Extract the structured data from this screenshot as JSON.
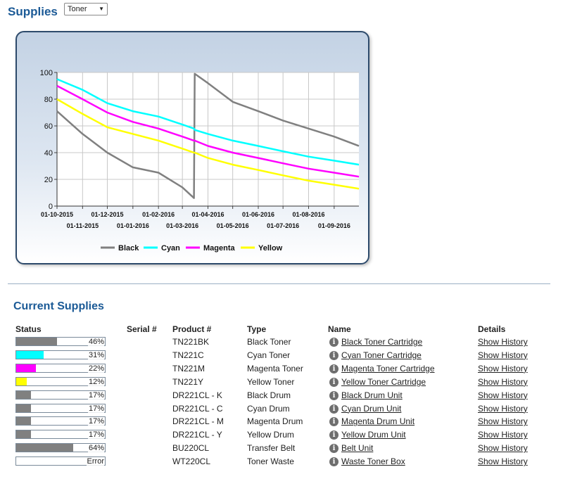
{
  "header": {
    "title": "Supplies",
    "select_value": "Toner"
  },
  "legend": [
    {
      "label": "Black",
      "color": "#808080"
    },
    {
      "label": "Cyan",
      "color": "#00ffff"
    },
    {
      "label": "Magenta",
      "color": "#ff00ff"
    },
    {
      "label": "Yellow",
      "color": "#ffff00"
    }
  ],
  "chart_data": {
    "type": "line",
    "title": "",
    "xlabel": "",
    "ylabel": "",
    "ylim": [
      0,
      100
    ],
    "yticks": [
      0,
      20,
      40,
      60,
      80,
      100
    ],
    "grid": true,
    "legend_position": "bottom",
    "x_ticks_row1": [
      "01-10-2015",
      "01-12-2015",
      "01-02-2016",
      "01-04-2016",
      "01-06-2016",
      "01-08-2016"
    ],
    "x_ticks_row2": [
      "01-11-2015",
      "01-01-2016",
      "01-03-2016",
      "01-05-2016",
      "01-07-2016",
      "01-09-2016"
    ],
    "x": [
      "01-10-2015",
      "01-11-2015",
      "01-12-2015",
      "01-01-2016",
      "01-02-2016",
      "01-03-2016",
      "15-03-2016",
      "16-03-2016",
      "01-04-2016",
      "01-05-2016",
      "01-06-2016",
      "01-07-2016",
      "01-08-2016",
      "01-09-2016",
      "01-10-2016"
    ],
    "series": [
      {
        "name": "Black",
        "color": "#808080",
        "values": [
          71,
          54,
          40,
          29,
          25,
          14,
          6,
          99,
          92,
          78,
          71,
          64,
          58,
          52,
          45
        ]
      },
      {
        "name": "Cyan",
        "color": "#00ffff",
        "values": [
          95,
          87,
          77,
          71,
          67,
          61,
          58,
          57,
          54,
          49,
          45,
          41,
          37,
          34,
          31
        ]
      },
      {
        "name": "Magenta",
        "color": "#ff00ff",
        "values": [
          90,
          80,
          70,
          63,
          58,
          52,
          49,
          49,
          45,
          40,
          36,
          32,
          28,
          25,
          22
        ]
      },
      {
        "name": "Yellow",
        "color": "#ffff00",
        "values": [
          80,
          69,
          59,
          54,
          49,
          43,
          40,
          40,
          36,
          31,
          27,
          23,
          19,
          16,
          13
        ]
      }
    ]
  },
  "current": {
    "title": "Current Supplies",
    "headers": {
      "status": "Status",
      "serial": "Serial #",
      "product": "Product #",
      "type": "Type",
      "name": "Name",
      "details": "Details"
    },
    "rows": [
      {
        "status_text": "46%",
        "level": 0.46,
        "color": "#808080",
        "serial": "",
        "product": "TN221BK",
        "type": "Black Toner",
        "name": "Black Toner Cartridge",
        "details": "Show History"
      },
      {
        "status_text": "31%",
        "level": 0.31,
        "color": "#00ffff",
        "serial": "",
        "product": "TN221C",
        "type": "Cyan Toner",
        "name": "Cyan Toner Cartridge",
        "details": "Show History"
      },
      {
        "status_text": "22%",
        "level": 0.22,
        "color": "#ff00ff",
        "serial": "",
        "product": "TN221M",
        "type": "Magenta Toner",
        "name": "Magenta Toner Cartridge",
        "details": "Show History"
      },
      {
        "status_text": "12%",
        "level": 0.12,
        "color": "#ffff00",
        "serial": "",
        "product": "TN221Y",
        "type": "Yellow Toner",
        "name": "Yellow Toner Cartridge",
        "details": "Show History"
      },
      {
        "status_text": "17%",
        "level": 0.17,
        "color": "#808080",
        "serial": "",
        "product": "DR221CL - K",
        "type": "Black Drum",
        "name": "Black Drum Unit",
        "details": "Show History"
      },
      {
        "status_text": "17%",
        "level": 0.17,
        "color": "#808080",
        "serial": "",
        "product": "DR221CL - C",
        "type": "Cyan Drum",
        "name": "Cyan Drum Unit",
        "details": "Show History"
      },
      {
        "status_text": "17%",
        "level": 0.17,
        "color": "#808080",
        "serial": "",
        "product": "DR221CL - M",
        "type": "Magenta Drum",
        "name": "Magenta Drum Unit",
        "details": "Show History"
      },
      {
        "status_text": "17%",
        "level": 0.17,
        "color": "#808080",
        "serial": "",
        "product": "DR221CL - Y",
        "type": "Yellow Drum",
        "name": "Yellow Drum Unit",
        "details": "Show History"
      },
      {
        "status_text": "64%",
        "level": 0.64,
        "color": "#808080",
        "serial": "",
        "product": "BU220CL",
        "type": "Transfer Belt",
        "name": "Belt Unit",
        "details": "Show History"
      },
      {
        "status_text": "Error",
        "level": 0,
        "color": "#808080",
        "serial": "",
        "product": "WT220CL",
        "type": "Toner Waste",
        "name": "Waste Toner Box",
        "details": "Show History"
      }
    ]
  }
}
